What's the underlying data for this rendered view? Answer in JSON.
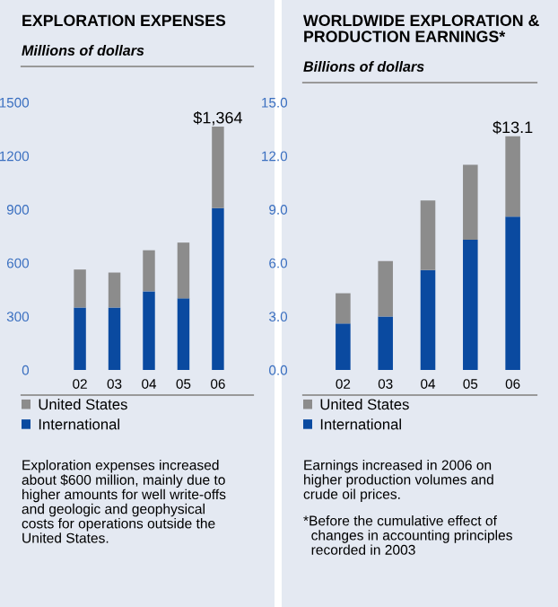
{
  "chart_data": [
    {
      "type": "bar",
      "title": "EXPLORATION EXPENSES",
      "subtitle": "Millions of dollars",
      "categories": [
        "02",
        "03",
        "04",
        "05",
        "06"
      ],
      "stacked": true,
      "series": [
        {
          "name": "International",
          "color": "#0a4aa0",
          "values": [
            350,
            350,
            441,
            401,
            907
          ]
        },
        {
          "name": "United States",
          "color": "#8c8c8c",
          "values": [
            213,
            196,
            230,
            313,
            457
          ]
        }
      ],
      "totals": [
        null,
        null,
        null,
        null,
        "$1,364"
      ],
      "ylim": [
        0,
        1500
      ],
      "yticks": [
        0,
        300,
        600,
        900,
        1200,
        1500
      ],
      "grid": false,
      "legend": "bottom",
      "annotations": [
        "Exploration expenses increased\nabout $600 million, mainly due to\nhigher amounts for well write-offs\nand geologic and geophysical\ncosts for operations outside the\nUnited States."
      ]
    },
    {
      "type": "bar",
      "title": "WORLDWIDE EXPLORATION &\nPRODUCTION EARNINGS*",
      "subtitle": "Billions of dollars",
      "categories": [
        "02",
        "03",
        "04",
        "05",
        "06"
      ],
      "stacked": true,
      "series": [
        {
          "name": "International",
          "color": "#0a4aa0",
          "values": [
            2.6,
            3.0,
            5.6,
            7.3,
            8.6
          ]
        },
        {
          "name": "United States",
          "color": "#8c8c8c",
          "values": [
            1.7,
            3.1,
            3.9,
            4.2,
            4.5
          ]
        }
      ],
      "totals": [
        null,
        null,
        null,
        null,
        "$13.1"
      ],
      "ylim": [
        0,
        15
      ],
      "yticks": [
        {
          "value": 0,
          "label": "0.0"
        },
        {
          "value": 3,
          "label": "3.0"
        },
        {
          "value": 6,
          "label": "6.0"
        },
        {
          "value": 9,
          "label": "9.0"
        },
        {
          "value": 12,
          "label": "12.0"
        },
        {
          "value": 15,
          "label": "15.0"
        }
      ],
      "grid": false,
      "legend": "bottom",
      "annotations": [
        "Earnings increased in 2006 on\nhigher production volumes and\ncrude oil prices.",
        "*Before the cumulative effect of\n  changes in accounting principles\n  recorded in 2003"
      ]
    }
  ]
}
